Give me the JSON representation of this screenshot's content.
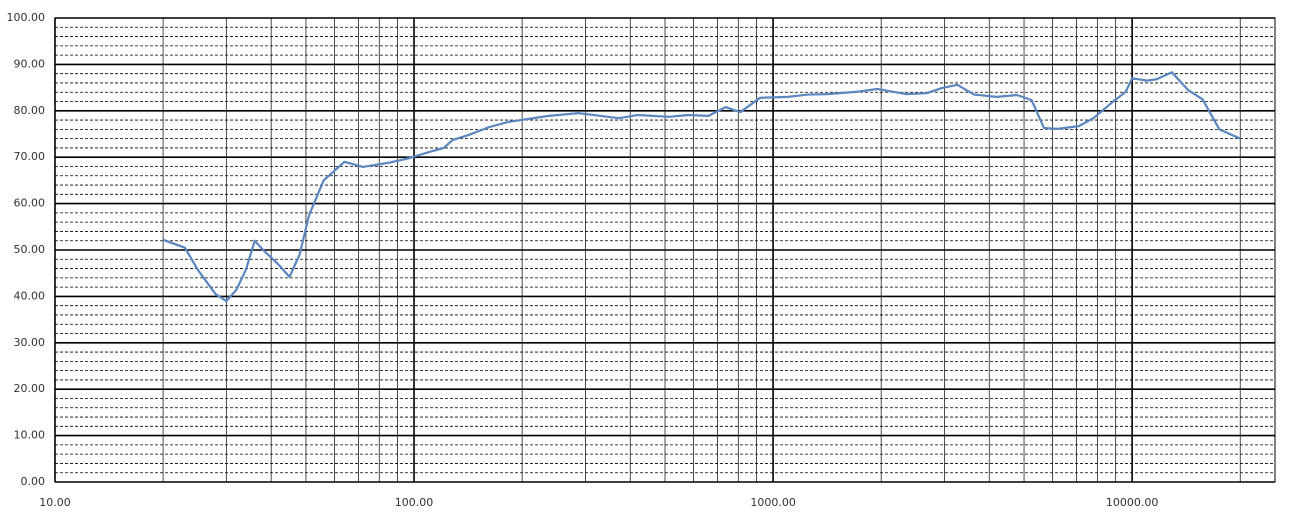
{
  "chart_data": {
    "type": "line",
    "xscale": "log",
    "x": [
      20,
      23,
      25,
      28,
      30,
      32,
      34,
      36,
      38,
      42,
      45,
      48,
      51,
      56,
      64,
      72,
      85,
      97,
      110,
      121,
      128,
      142,
      162,
      183,
      237,
      287,
      372,
      420,
      512,
      581,
      660,
      738,
      810,
      920,
      1100,
      1250,
      1420,
      1710,
      1950,
      2350,
      2680,
      2950,
      3260,
      3630,
      4200,
      4780,
      5250,
      5680,
      6200,
      7100,
      7800,
      8760,
      9600,
      10000,
      11000,
      11700,
      12900,
      14300,
      15700,
      17500,
      20000
    ],
    "series": [
      {
        "color": "#5b86c0",
        "values": [
          52.2,
          50.5,
          45.7,
          40.5,
          39,
          41.4,
          45.7,
          52,
          50,
          46.8,
          44.2,
          49,
          57.5,
          65,
          69,
          67.9,
          68.8,
          69.8,
          71.1,
          72,
          73.7,
          74.8,
          76.5,
          77.6,
          78.9,
          79.5,
          78.4,
          79.1,
          78.7,
          79.1,
          78.9,
          80.8,
          79.7,
          82.8,
          83,
          83.5,
          83.6,
          84.1,
          84.7,
          83.6,
          83.8,
          84.9,
          85.6,
          83.5,
          83,
          83.4,
          82.3,
          76.3,
          76.1,
          76.7,
          78.4,
          81.7,
          84.1,
          87,
          86.5,
          86.8,
          88.3,
          84.5,
          82.5,
          76,
          74
        ]
      }
    ],
    "xlim": [
      10,
      25000
    ],
    "xticks": [
      {
        "value": 10,
        "label": "10.00"
      },
      {
        "value": 100,
        "label": "100.00"
      },
      {
        "value": 1000,
        "label": "1000.00"
      },
      {
        "value": 10000,
        "label": "10000.00"
      }
    ],
    "x_minor_ticks": [
      20,
      30,
      40,
      50,
      60,
      70,
      80,
      90,
      200,
      300,
      400,
      500,
      600,
      700,
      800,
      900,
      2000,
      3000,
      4000,
      5000,
      6000,
      7000,
      8000,
      9000,
      20000
    ],
    "ylim": [
      0,
      100
    ],
    "yticks": [
      {
        "value": 0,
        "label": "0.00"
      },
      {
        "value": 10,
        "label": "10.00"
      },
      {
        "value": 20,
        "label": "20.00"
      },
      {
        "value": 30,
        "label": "30.00"
      },
      {
        "value": 40,
        "label": "40.00"
      },
      {
        "value": 50,
        "label": "50.00"
      },
      {
        "value": 60,
        "label": "60.00"
      },
      {
        "value": 70,
        "label": "70.00"
      },
      {
        "value": 80,
        "label": "80.00"
      },
      {
        "value": 90,
        "label": "90.00"
      },
      {
        "value": 100,
        "label": "100.00"
      }
    ],
    "y_minor_ticks": [
      2,
      4,
      6,
      8,
      12,
      14,
      16,
      18,
      22,
      24,
      26,
      28,
      32,
      34,
      36,
      38,
      42,
      44,
      46,
      48,
      52,
      54,
      56,
      58,
      62,
      64,
      66,
      68,
      72,
      74,
      76,
      78,
      82,
      84,
      86,
      88,
      92,
      94,
      96,
      98
    ],
    "grid": true
  }
}
